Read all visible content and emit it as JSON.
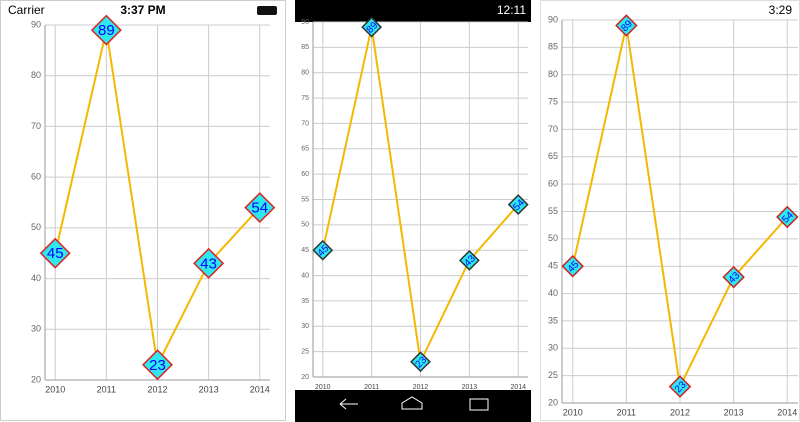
{
  "status_bars": [
    {
      "carrier": "Carrier",
      "time": "3:37 PM"
    },
    {
      "time": "12:11"
    },
    {
      "time": "3:29"
    }
  ],
  "chart_data": [
    {
      "type": "line",
      "categories": [
        "2010",
        "2011",
        "2012",
        "2013",
        "2014"
      ],
      "series": [
        {
          "color": "#f5b800",
          "values": [
            45,
            89,
            23,
            43,
            54
          ]
        }
      ],
      "ylim": [
        20,
        90
      ],
      "yticks": [
        20,
        30,
        40,
        50,
        60,
        70,
        80,
        90
      ],
      "grid": true
    },
    {
      "type": "line",
      "categories": [
        "2010",
        "2011",
        "2012",
        "2013",
        "2014"
      ],
      "series": [
        {
          "color": "#f5b800",
          "values": [
            45,
            89,
            23,
            43,
            54
          ]
        }
      ],
      "ylim": [
        20,
        90
      ],
      "yticks": [
        20,
        25,
        30,
        35,
        40,
        45,
        50,
        55,
        60,
        65,
        70,
        75,
        80,
        85,
        90
      ],
      "grid": true
    },
    {
      "type": "line",
      "categories": [
        "2010",
        "2011",
        "2012",
        "2013",
        "2014"
      ],
      "series": [
        {
          "color": "#f5b800",
          "values": [
            45,
            89,
            23,
            43,
            54
          ]
        }
      ],
      "ylim": [
        20,
        90
      ],
      "yticks": [
        20,
        25,
        30,
        35,
        40,
        45,
        50,
        55,
        60,
        65,
        70,
        75,
        80,
        85,
        90
      ],
      "grid": true
    }
  ]
}
